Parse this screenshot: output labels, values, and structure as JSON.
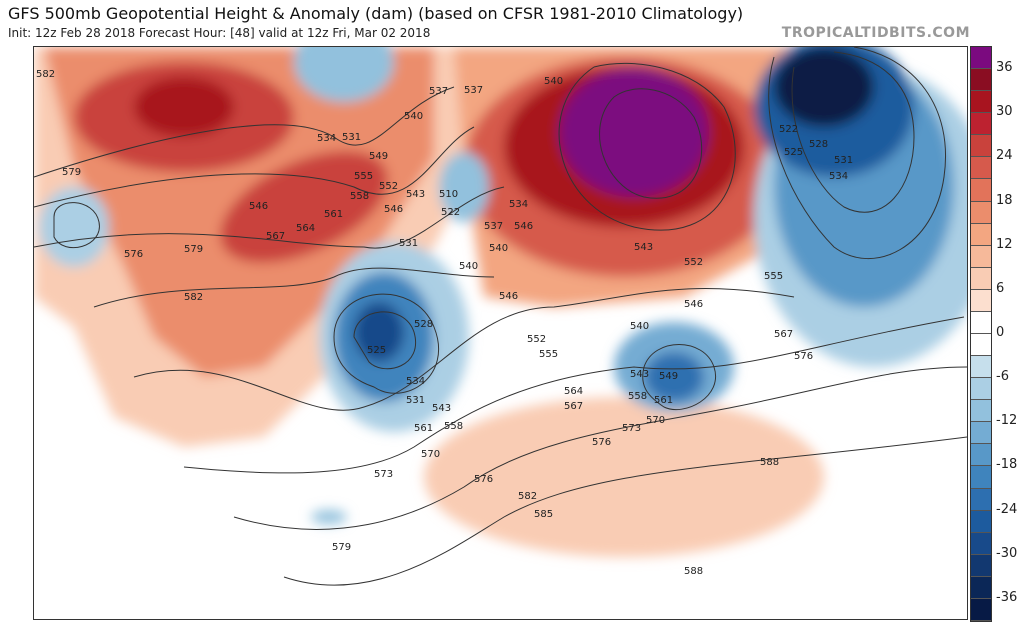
{
  "header": {
    "title": "GFS 500mb Geopotential Height & Anomaly (dam) (based on CFSR 1981-2010 Climatology)",
    "subtitle": "Init: 12z Feb 28 2018   Forecast Hour: [48]   valid at 12z Fri, Mar 02 2018",
    "brand": "TROPICALTIDBITS.COM"
  },
  "colorbar": {
    "ticks": [
      "36",
      "30",
      "24",
      "18",
      "12",
      "6",
      "0",
      "-6",
      "-12",
      "-18",
      "-24",
      "-30",
      "-36"
    ],
    "colors": [
      "#7b0a7f",
      "#8a0d22",
      "#a8141f",
      "#bd2230",
      "#c9423c",
      "#d65a4c",
      "#e2735a",
      "#eb8d6c",
      "#f3a681",
      "#f6b99a",
      "#f9ccb4",
      "#fcdfcf",
      "#ffffff",
      "#ffffff",
      "#c6dfec",
      "#abcfe4",
      "#92c1dd",
      "#74acd3",
      "#5898c8",
      "#3f84bd",
      "#2d6fb0",
      "#1d5b9e",
      "#184a8a",
      "#123870",
      "#0b2757",
      "#071a45"
    ]
  },
  "map": {
    "contour_labels": [
      "582",
      "579",
      "576",
      "579",
      "582",
      "546",
      "567",
      "564",
      "561",
      "558",
      "555",
      "552",
      "549",
      "546",
      "543",
      "540",
      "537",
      "534",
      "531",
      "531",
      "528",
      "525",
      "534",
      "531",
      "543",
      "558",
      "561",
      "570",
      "573",
      "576",
      "579",
      "510",
      "522",
      "537",
      "540",
      "546",
      "552",
      "555",
      "564",
      "567",
      "576",
      "573",
      "570",
      "561",
      "558",
      "549",
      "546",
      "543",
      "540",
      "552",
      "555",
      "567",
      "576",
      "546",
      "543",
      "540",
      "537",
      "534",
      "531",
      "528",
      "525",
      "522",
      "588",
      "582",
      "585",
      "588",
      "534",
      "540"
    ]
  }
}
